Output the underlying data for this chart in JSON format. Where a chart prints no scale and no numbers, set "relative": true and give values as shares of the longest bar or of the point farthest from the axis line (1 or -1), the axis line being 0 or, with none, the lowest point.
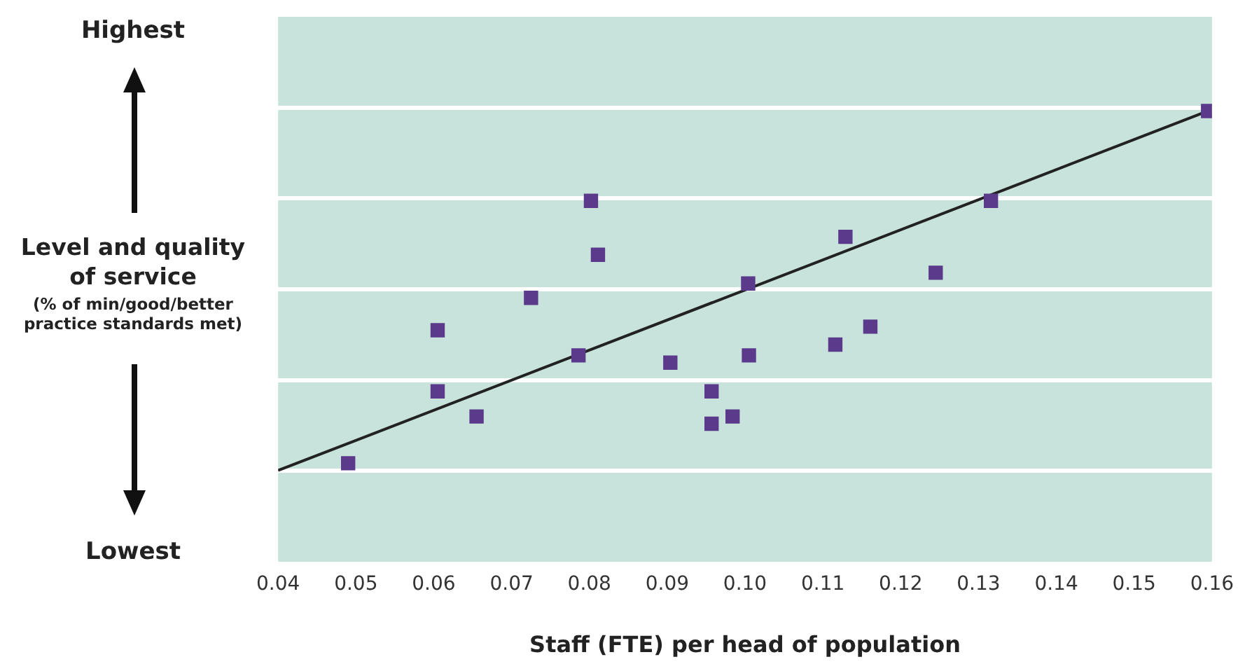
{
  "chart_data": {
    "type": "scatter",
    "xlabel": "Staff (FTE) per head of population",
    "ylabel": "Level and quality of service",
    "annotations": [
      "(% of min/good/better practice standards met)",
      "Highest",
      "Lowest"
    ],
    "relative": true,
    "grid": "y",
    "xlim": [
      0.04,
      0.16
    ],
    "xticks": [
      0.04,
      0.05,
      0.06,
      0.07,
      0.08,
      0.09,
      {
        "value": 0.1,
        "label": "0.10"
      },
      0.11,
      0.12,
      0.13,
      0.14,
      0.15,
      0.16
    ],
    "series": [
      {
        "color": "#5b3a8c",
        "marker": "square",
        "x": [
          0.049,
          0.0605,
          0.0605,
          0.0655,
          0.0725,
          0.0786,
          0.0802,
          0.0811,
          0.0904,
          0.0957,
          0.0957,
          0.0984,
          0.1004,
          0.1005,
          0.1116,
          0.1129,
          0.1161,
          0.1245,
          0.1316,
          0.1595
        ],
        "values": [
          0.02,
          0.22,
          0.39,
          0.15,
          0.48,
          0.32,
          0.75,
          0.6,
          0.3,
          0.22,
          0.13,
          0.15,
          0.52,
          0.32,
          0.35,
          0.65,
          0.4,
          0.55,
          0.75,
          1
        ]
      },
      {
        "type": "line",
        "color": "#222222",
        "x": [
          0.04,
          0.1595
        ],
        "values": [
          0,
          1
        ]
      }
    ]
  }
}
